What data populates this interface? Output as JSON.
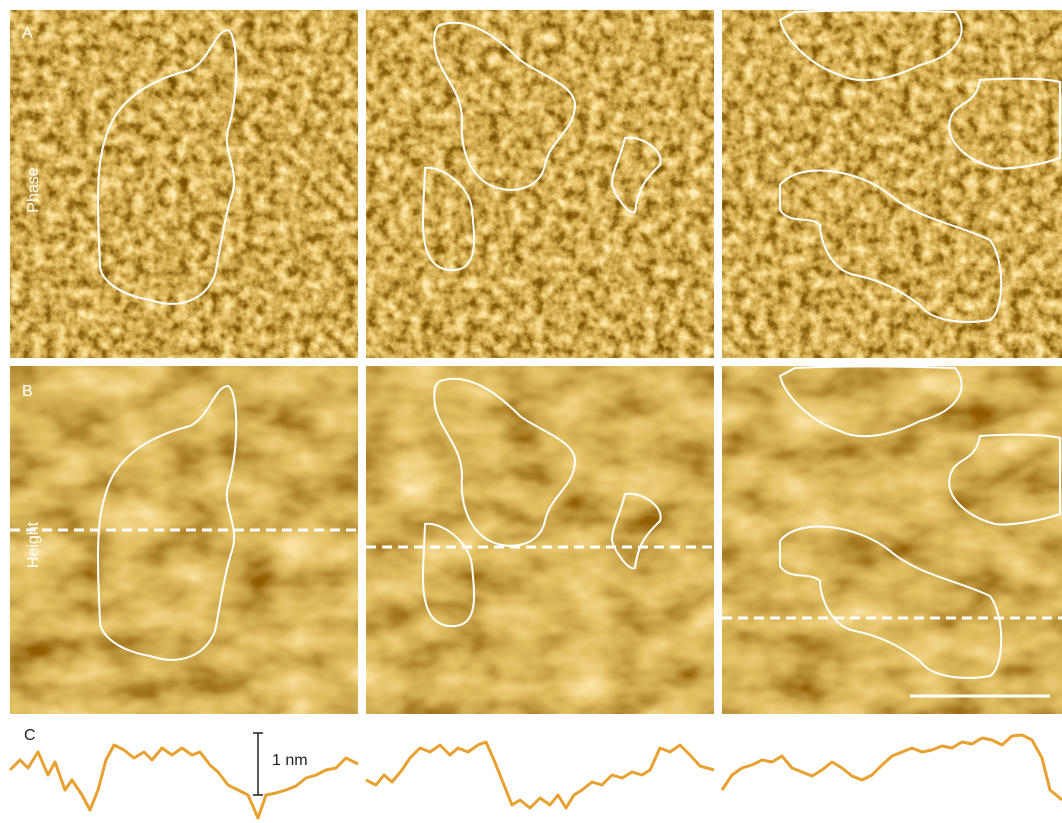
{
  "panels": {
    "A": {
      "label": "A",
      "side_label": "Phase"
    },
    "B": {
      "label": "B",
      "side_label": "Height"
    },
    "C": {
      "label": "C",
      "scale_label": "1 nm"
    }
  }
}
